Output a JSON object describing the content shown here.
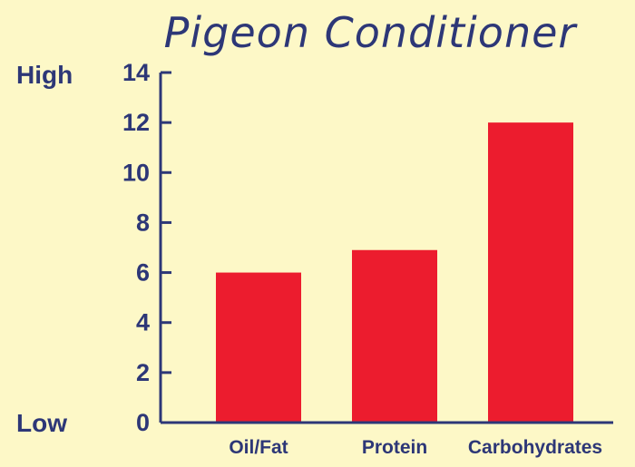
{
  "colors": {
    "background": "#fdf8c7",
    "axis": "#2d3777",
    "bar": "#ec1c2e",
    "text": "#2d3777"
  },
  "chart_data": {
    "type": "bar",
    "title": "Pigeon Conditioner",
    "categories": [
      "Oil/Fat",
      "Protein",
      "Carbohydrates"
    ],
    "values": [
      6,
      6.9,
      12
    ],
    "ylim": [
      0,
      14
    ],
    "yticks": [
      "0",
      "2",
      "4",
      "6",
      "8",
      "10",
      "12",
      "14"
    ],
    "y_top_label": "High",
    "y_bottom_label": "Low",
    "grid": false,
    "legend": "none"
  }
}
